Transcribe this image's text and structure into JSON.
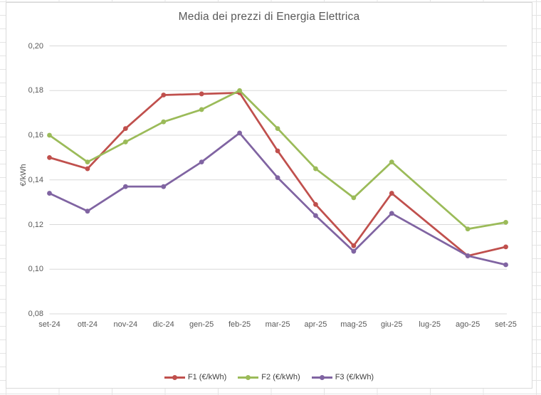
{
  "chart_data": {
    "type": "line",
    "title": "Media dei prezzi di Energia Elettrica",
    "ylabel": "€/kWh",
    "xlabel": "",
    "ylim": [
      0.08,
      0.2
    ],
    "ytick_step": 0.02,
    "yticks": [
      0.2,
      0.18,
      0.16,
      0.14,
      0.12,
      0.1,
      0.08
    ],
    "ytick_labels": [
      "0,20",
      "0,18",
      "0,16",
      "0,14",
      "0,12",
      "0,10",
      "0,08"
    ],
    "grid": true,
    "legend_position": "bottom",
    "categories": [
      "set-24",
      "ott-24",
      "nov-24",
      "dic-24",
      "gen-25",
      "feb-25",
      "mar-25",
      "apr-25",
      "mag-25",
      "giu-25",
      "lug-25",
      "ago-25",
      "set-25"
    ],
    "series": [
      {
        "name": "F1 (€/kWh)",
        "color": "#C0504D",
        "values": [
          0.15,
          0.145,
          0.163,
          0.178,
          0.1785,
          0.179,
          0.153,
          0.129,
          0.1105,
          0.134,
          null,
          0.106,
          0.11
        ]
      },
      {
        "name": "F2 (€/kWh)",
        "color": "#9BBB59",
        "values": [
          0.16,
          0.148,
          0.157,
          0.166,
          0.1715,
          0.18,
          0.163,
          0.145,
          0.132,
          0.148,
          null,
          0.118,
          0.121
        ]
      },
      {
        "name": "F3 (€/kWh)",
        "color": "#8064A2",
        "values": [
          0.134,
          0.126,
          0.137,
          0.137,
          0.148,
          0.161,
          0.141,
          0.124,
          0.108,
          0.125,
          null,
          0.106,
          0.102
        ]
      }
    ],
    "note_colors": {
      "gridline": "#d9d9d9",
      "axis_text": "#595959",
      "legend_text": "#404040"
    }
  }
}
